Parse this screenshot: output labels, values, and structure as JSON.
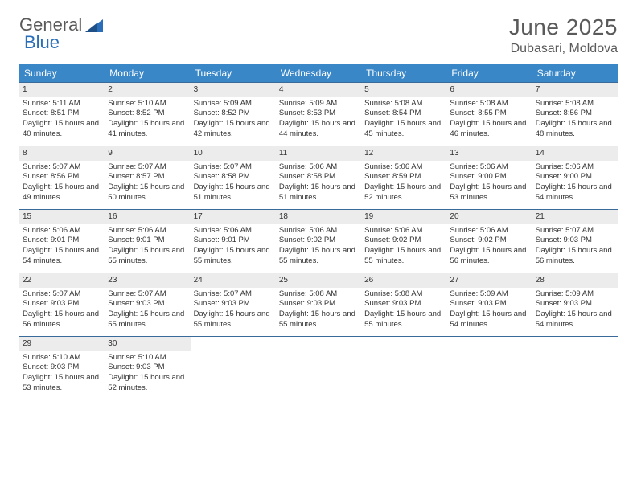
{
  "logo": {
    "part1": "General",
    "part2": "Blue"
  },
  "header": {
    "month_year": "June 2025",
    "location": "Dubasari, Moldova"
  },
  "colors": {
    "header_bar": "#3a87c8",
    "header_text": "#ffffff",
    "week_border": "#3a6a9a",
    "daynum_bg": "#ececec",
    "text": "#333333",
    "logo_gray": "#5a5a5a",
    "logo_blue": "#2a6db8"
  },
  "weekdays": [
    "Sunday",
    "Monday",
    "Tuesday",
    "Wednesday",
    "Thursday",
    "Friday",
    "Saturday"
  ],
  "weeks": [
    [
      {
        "num": "1",
        "sunrise": "Sunrise: 5:11 AM",
        "sunset": "Sunset: 8:51 PM",
        "daylight": "Daylight: 15 hours and 40 minutes."
      },
      {
        "num": "2",
        "sunrise": "Sunrise: 5:10 AM",
        "sunset": "Sunset: 8:52 PM",
        "daylight": "Daylight: 15 hours and 41 minutes."
      },
      {
        "num": "3",
        "sunrise": "Sunrise: 5:09 AM",
        "sunset": "Sunset: 8:52 PM",
        "daylight": "Daylight: 15 hours and 42 minutes."
      },
      {
        "num": "4",
        "sunrise": "Sunrise: 5:09 AM",
        "sunset": "Sunset: 8:53 PM",
        "daylight": "Daylight: 15 hours and 44 minutes."
      },
      {
        "num": "5",
        "sunrise": "Sunrise: 5:08 AM",
        "sunset": "Sunset: 8:54 PM",
        "daylight": "Daylight: 15 hours and 45 minutes."
      },
      {
        "num": "6",
        "sunrise": "Sunrise: 5:08 AM",
        "sunset": "Sunset: 8:55 PM",
        "daylight": "Daylight: 15 hours and 46 minutes."
      },
      {
        "num": "7",
        "sunrise": "Sunrise: 5:08 AM",
        "sunset": "Sunset: 8:56 PM",
        "daylight": "Daylight: 15 hours and 48 minutes."
      }
    ],
    [
      {
        "num": "8",
        "sunrise": "Sunrise: 5:07 AM",
        "sunset": "Sunset: 8:56 PM",
        "daylight": "Daylight: 15 hours and 49 minutes."
      },
      {
        "num": "9",
        "sunrise": "Sunrise: 5:07 AM",
        "sunset": "Sunset: 8:57 PM",
        "daylight": "Daylight: 15 hours and 50 minutes."
      },
      {
        "num": "10",
        "sunrise": "Sunrise: 5:07 AM",
        "sunset": "Sunset: 8:58 PM",
        "daylight": "Daylight: 15 hours and 51 minutes."
      },
      {
        "num": "11",
        "sunrise": "Sunrise: 5:06 AM",
        "sunset": "Sunset: 8:58 PM",
        "daylight": "Daylight: 15 hours and 51 minutes."
      },
      {
        "num": "12",
        "sunrise": "Sunrise: 5:06 AM",
        "sunset": "Sunset: 8:59 PM",
        "daylight": "Daylight: 15 hours and 52 minutes."
      },
      {
        "num": "13",
        "sunrise": "Sunrise: 5:06 AM",
        "sunset": "Sunset: 9:00 PM",
        "daylight": "Daylight: 15 hours and 53 minutes."
      },
      {
        "num": "14",
        "sunrise": "Sunrise: 5:06 AM",
        "sunset": "Sunset: 9:00 PM",
        "daylight": "Daylight: 15 hours and 54 minutes."
      }
    ],
    [
      {
        "num": "15",
        "sunrise": "Sunrise: 5:06 AM",
        "sunset": "Sunset: 9:01 PM",
        "daylight": "Daylight: 15 hours and 54 minutes."
      },
      {
        "num": "16",
        "sunrise": "Sunrise: 5:06 AM",
        "sunset": "Sunset: 9:01 PM",
        "daylight": "Daylight: 15 hours and 55 minutes."
      },
      {
        "num": "17",
        "sunrise": "Sunrise: 5:06 AM",
        "sunset": "Sunset: 9:01 PM",
        "daylight": "Daylight: 15 hours and 55 minutes."
      },
      {
        "num": "18",
        "sunrise": "Sunrise: 5:06 AM",
        "sunset": "Sunset: 9:02 PM",
        "daylight": "Daylight: 15 hours and 55 minutes."
      },
      {
        "num": "19",
        "sunrise": "Sunrise: 5:06 AM",
        "sunset": "Sunset: 9:02 PM",
        "daylight": "Daylight: 15 hours and 55 minutes."
      },
      {
        "num": "20",
        "sunrise": "Sunrise: 5:06 AM",
        "sunset": "Sunset: 9:02 PM",
        "daylight": "Daylight: 15 hours and 56 minutes."
      },
      {
        "num": "21",
        "sunrise": "Sunrise: 5:07 AM",
        "sunset": "Sunset: 9:03 PM",
        "daylight": "Daylight: 15 hours and 56 minutes."
      }
    ],
    [
      {
        "num": "22",
        "sunrise": "Sunrise: 5:07 AM",
        "sunset": "Sunset: 9:03 PM",
        "daylight": "Daylight: 15 hours and 56 minutes."
      },
      {
        "num": "23",
        "sunrise": "Sunrise: 5:07 AM",
        "sunset": "Sunset: 9:03 PM",
        "daylight": "Daylight: 15 hours and 55 minutes."
      },
      {
        "num": "24",
        "sunrise": "Sunrise: 5:07 AM",
        "sunset": "Sunset: 9:03 PM",
        "daylight": "Daylight: 15 hours and 55 minutes."
      },
      {
        "num": "25",
        "sunrise": "Sunrise: 5:08 AM",
        "sunset": "Sunset: 9:03 PM",
        "daylight": "Daylight: 15 hours and 55 minutes."
      },
      {
        "num": "26",
        "sunrise": "Sunrise: 5:08 AM",
        "sunset": "Sunset: 9:03 PM",
        "daylight": "Daylight: 15 hours and 55 minutes."
      },
      {
        "num": "27",
        "sunrise": "Sunrise: 5:09 AM",
        "sunset": "Sunset: 9:03 PM",
        "daylight": "Daylight: 15 hours and 54 minutes."
      },
      {
        "num": "28",
        "sunrise": "Sunrise: 5:09 AM",
        "sunset": "Sunset: 9:03 PM",
        "daylight": "Daylight: 15 hours and 54 minutes."
      }
    ],
    [
      {
        "num": "29",
        "sunrise": "Sunrise: 5:10 AM",
        "sunset": "Sunset: 9:03 PM",
        "daylight": "Daylight: 15 hours and 53 minutes."
      },
      {
        "num": "30",
        "sunrise": "Sunrise: 5:10 AM",
        "sunset": "Sunset: 9:03 PM",
        "daylight": "Daylight: 15 hours and 52 minutes."
      },
      null,
      null,
      null,
      null,
      null
    ]
  ]
}
